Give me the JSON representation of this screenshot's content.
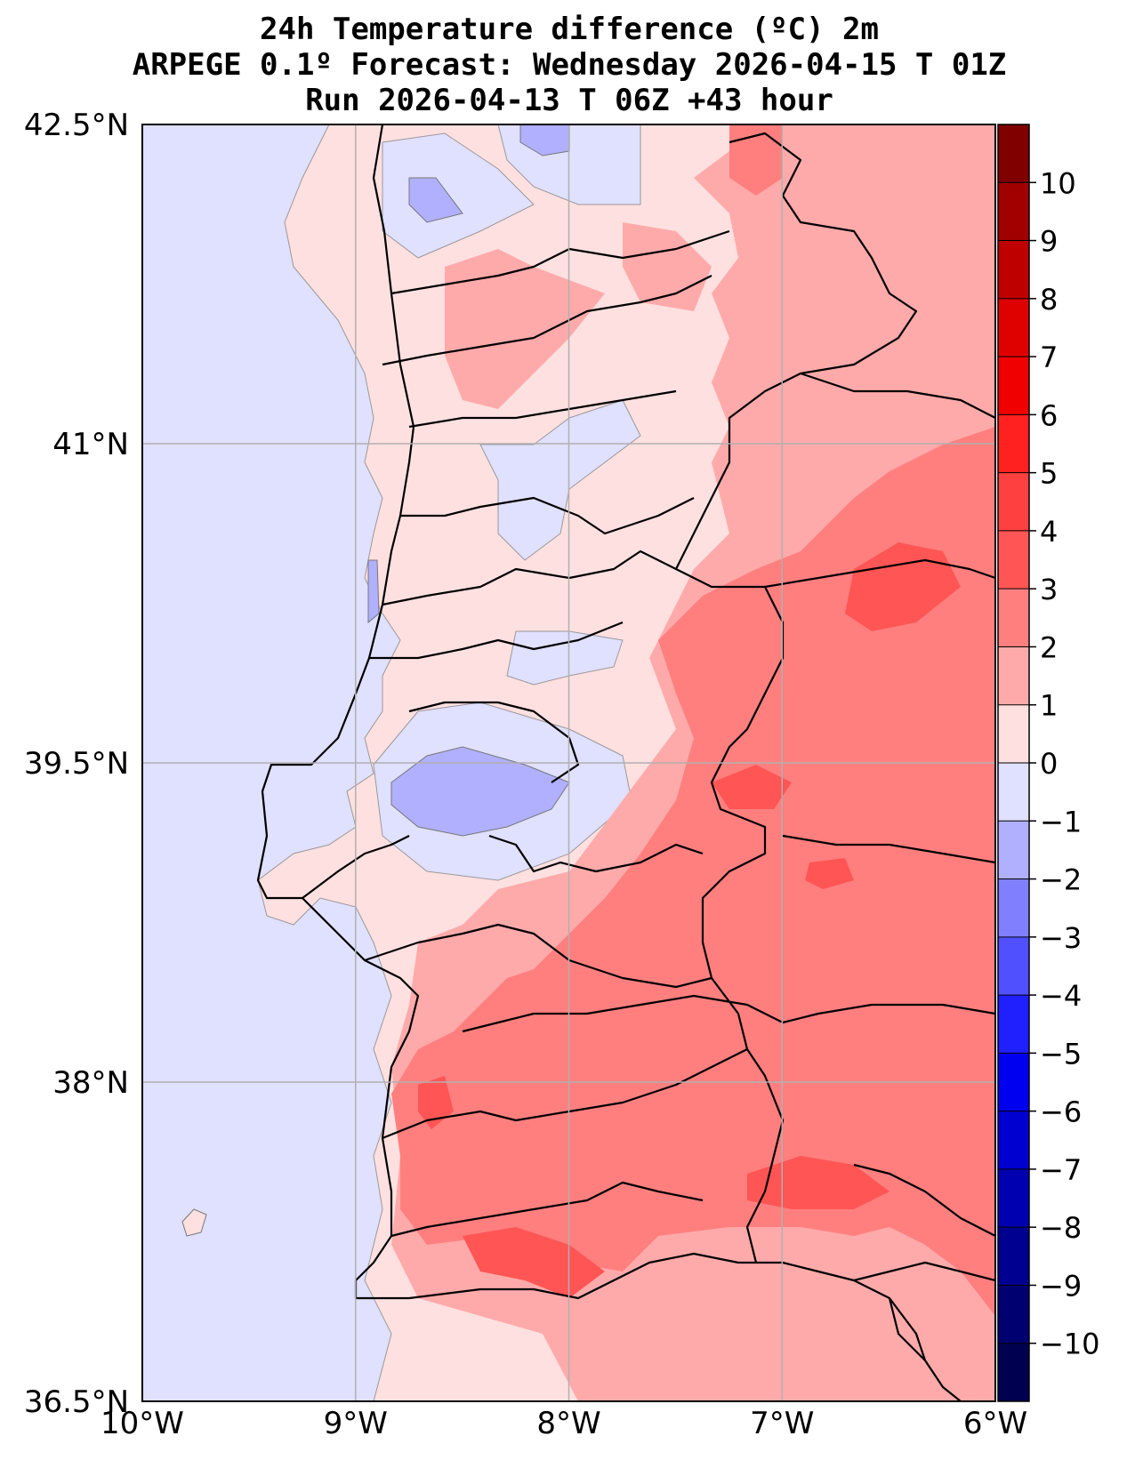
{
  "title": {
    "line1": "24h Temperature difference (ºC) 2m",
    "line2": "ARPEGE 0.1º Forecast: Wednesday 2026-04-15 T 01Z",
    "line3": "Run 2026-04-13 T 06Z +43 hour"
  },
  "axes": {
    "lat_ticks": [
      {
        "value": 42.5,
        "label": "42.5°N"
      },
      {
        "value": 41.0,
        "label": "41°N"
      },
      {
        "value": 39.5,
        "label": "39.5°N"
      },
      {
        "value": 38.0,
        "label": "38°N"
      },
      {
        "value": 36.5,
        "label": "36.5°N"
      }
    ],
    "lon_ticks": [
      {
        "value": -10,
        "label": "10°W"
      },
      {
        "value": -9,
        "label": "9°W"
      },
      {
        "value": -8,
        "label": "8°W"
      },
      {
        "value": -7,
        "label": "7°W"
      },
      {
        "value": -6,
        "label": "6°W"
      }
    ],
    "lon_range": [
      -10,
      -6
    ],
    "lat_range": [
      36.5,
      42.5
    ]
  },
  "colorbar": {
    "range": [
      -11,
      11
    ],
    "tick_labels": [
      {
        "value": 10,
        "label": "10"
      },
      {
        "value": 9,
        "label": "9"
      },
      {
        "value": 8,
        "label": "8"
      },
      {
        "value": 7,
        "label": "7"
      },
      {
        "value": 6,
        "label": "6"
      },
      {
        "value": 5,
        "label": "5"
      },
      {
        "value": 4,
        "label": "4"
      },
      {
        "value": 3,
        "label": "3"
      },
      {
        "value": 2,
        "label": "2"
      },
      {
        "value": 1,
        "label": "1"
      },
      {
        "value": 0,
        "label": "0"
      },
      {
        "value": -1,
        "label": "−1"
      },
      {
        "value": -2,
        "label": "−2"
      },
      {
        "value": -3,
        "label": "−3"
      },
      {
        "value": -4,
        "label": "−4"
      },
      {
        "value": -5,
        "label": "−5"
      },
      {
        "value": -6,
        "label": "−6"
      },
      {
        "value": -7,
        "label": "−7"
      },
      {
        "value": -8,
        "label": "−8"
      },
      {
        "value": -9,
        "label": "−9"
      },
      {
        "value": -10,
        "label": "−10"
      }
    ],
    "levels": [
      {
        "from": 10,
        "to": 11,
        "color": "#800000"
      },
      {
        "from": 9,
        "to": 10,
        "color": "#a00000"
      },
      {
        "from": 8,
        "to": 9,
        "color": "#bf0000"
      },
      {
        "from": 7,
        "to": 8,
        "color": "#df0000"
      },
      {
        "from": 6,
        "to": 7,
        "color": "#f00000"
      },
      {
        "from": 5,
        "to": 6,
        "color": "#ff2020"
      },
      {
        "from": 4,
        "to": 5,
        "color": "#ff4040"
      },
      {
        "from": 3,
        "to": 4,
        "color": "#ff5555"
      },
      {
        "from": 2,
        "to": 3,
        "color": "#ff7f7f"
      },
      {
        "from": 1,
        "to": 2,
        "color": "#ffaaaa"
      },
      {
        "from": 0,
        "to": 1,
        "color": "#ffe0e0"
      },
      {
        "from": -1,
        "to": 0,
        "color": "#e0e0ff"
      },
      {
        "from": -2,
        "to": -1,
        "color": "#b0b0ff"
      },
      {
        "from": -3,
        "to": -2,
        "color": "#8080ff"
      },
      {
        "from": -4,
        "to": -3,
        "color": "#5050ff"
      },
      {
        "from": -5,
        "to": -4,
        "color": "#2020ff"
      },
      {
        "from": -6,
        "to": -5,
        "color": "#0000f0"
      },
      {
        "from": -7,
        "to": -6,
        "color": "#0000d0"
      },
      {
        "from": -8,
        "to": -7,
        "color": "#0000b0"
      },
      {
        "from": -9,
        "to": -8,
        "color": "#000090"
      },
      {
        "from": -10,
        "to": -9,
        "color": "#000070"
      },
      {
        "from": -11,
        "to": -10,
        "color": "#000050"
      }
    ]
  }
}
